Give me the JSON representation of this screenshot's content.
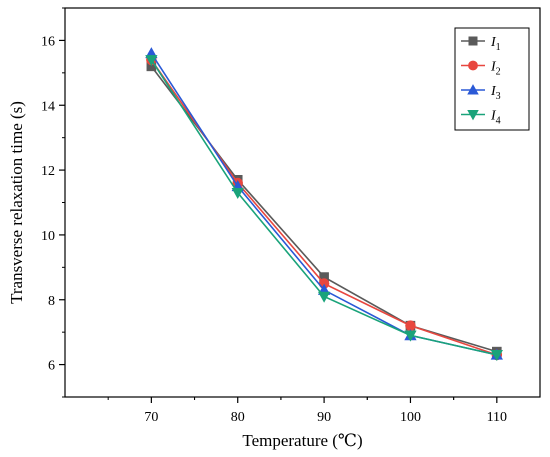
{
  "chart_data": {
    "type": "line",
    "title": "",
    "xlabel": "Temperature (℃)",
    "ylabel": "Transverse relaxation time (s)",
    "x": [
      70,
      80,
      90,
      100,
      110
    ],
    "xlim": [
      60,
      115
    ],
    "ylim": [
      5,
      17
    ],
    "xticks": [
      "70",
      "80",
      "90",
      "100",
      "110"
    ],
    "yticks": [
      "6",
      "8",
      "10",
      "12",
      "14",
      "16"
    ],
    "grid": false,
    "legend_position": "top-right",
    "series": [
      {
        "name": "I1",
        "label_main": "I",
        "label_sub": "1",
        "color": "#5a5a5a",
        "marker": "square",
        "values": [
          15.2,
          11.7,
          8.7,
          7.2,
          6.4
        ]
      },
      {
        "name": "I2",
        "label_main": "I",
        "label_sub": "2",
        "color": "#e8473f",
        "marker": "circle",
        "values": [
          15.4,
          11.6,
          8.5,
          7.2,
          6.3
        ]
      },
      {
        "name": "I3",
        "label_main": "I",
        "label_sub": "3",
        "color": "#2a59d6",
        "marker": "triangle-up",
        "values": [
          15.6,
          11.5,
          8.3,
          6.9,
          6.3
        ]
      },
      {
        "name": "I4",
        "label_main": "I",
        "label_sub": "4",
        "color": "#1aa37a",
        "marker": "triangle-down",
        "values": [
          15.4,
          11.3,
          8.1,
          6.9,
          6.3
        ]
      }
    ]
  }
}
